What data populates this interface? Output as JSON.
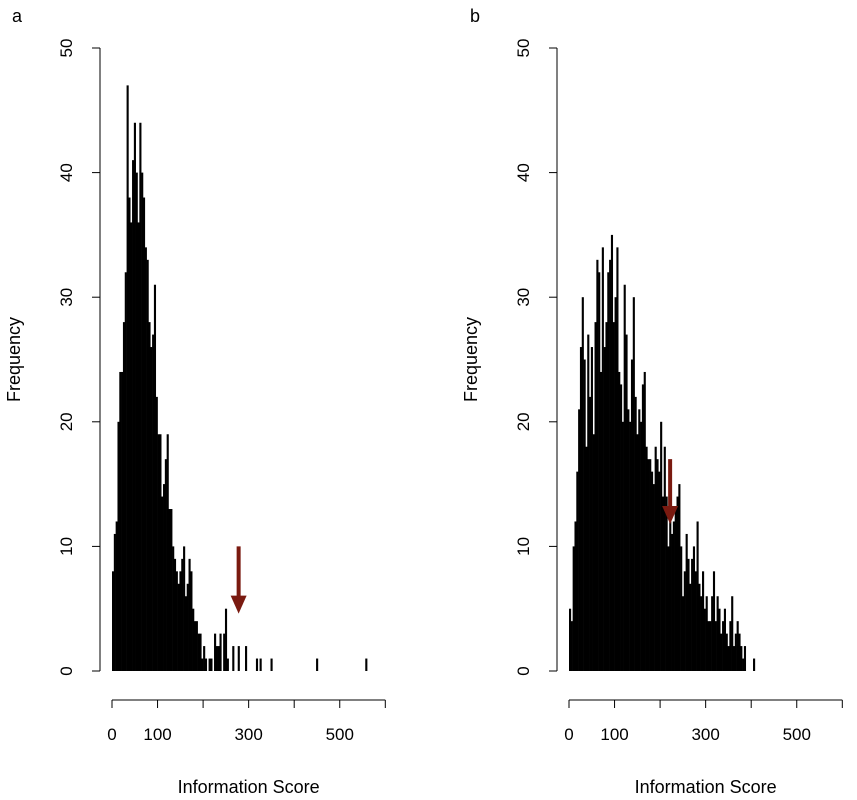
{
  "panels": [
    {
      "label": "a"
    },
    {
      "label": "b"
    }
  ],
  "chart_data": [
    {
      "type": "bar",
      "title": "",
      "panel_label": "a",
      "xlabel": "Information Score",
      "ylabel": "Frequency",
      "xlim": [
        0,
        600
      ],
      "ylim": [
        0,
        50
      ],
      "xticks": [
        0,
        100,
        200,
        300,
        400,
        500,
        600
      ],
      "xtick_labels": [
        "0",
        "100",
        "",
        "300",
        "",
        "500",
        ""
      ],
      "yticks": [
        0,
        10,
        20,
        30,
        40,
        50
      ],
      "ytick_labels": [
        "0",
        "10",
        "20",
        "30",
        "40",
        "50"
      ],
      "bin_width": 4,
      "color": "#000000",
      "arrow": {
        "x": 278,
        "y_from": 10,
        "y_to": 4.6,
        "color": "#7a1a10"
      },
      "series": [
        {
          "x": [
            0,
            4,
            8,
            12,
            16,
            20,
            24,
            28,
            32,
            36,
            40,
            44,
            48,
            52,
            56,
            60,
            64,
            68,
            72,
            76,
            80,
            84,
            88,
            92,
            96,
            100,
            104,
            108,
            112,
            116,
            120,
            124,
            128,
            132,
            136,
            140,
            144,
            148,
            152,
            156,
            160,
            164,
            168,
            172,
            176,
            180,
            184,
            188,
            192,
            196,
            200,
            204,
            208,
            212,
            216,
            220,
            224,
            228,
            232,
            236,
            240,
            244,
            248,
            252,
            256,
            260,
            264,
            268,
            272,
            276,
            280,
            284,
            288,
            292,
            296,
            300,
            304,
            308,
            312,
            316,
            320,
            324,
            328,
            332,
            336,
            340,
            344,
            348,
            352,
            356,
            360,
            364,
            368,
            372,
            376,
            380,
            384,
            388,
            392,
            396,
            400,
            404,
            408,
            412,
            416,
            420,
            424,
            428,
            432,
            436,
            440,
            444,
            448,
            452,
            456,
            460,
            464,
            468,
            472,
            476,
            480,
            484,
            488,
            492,
            496,
            500,
            504,
            508,
            512,
            516,
            520,
            524,
            528,
            532,
            536,
            540,
            544,
            548,
            552,
            556
          ],
          "values": [
            8,
            11,
            12,
            20,
            24,
            24,
            28,
            32,
            47,
            38,
            36,
            41,
            44,
            40,
            36,
            44,
            40,
            38,
            34,
            33,
            28,
            26,
            27,
            31,
            22,
            19,
            19,
            14,
            15,
            17,
            19,
            13,
            13,
            10,
            9,
            8,
            7,
            8,
            9,
            10,
            6,
            7,
            9,
            8,
            5,
            4,
            4,
            3,
            3,
            1,
            2,
            1,
            0,
            1,
            1,
            0,
            3,
            2,
            2,
            3,
            0,
            3,
            5,
            1,
            0,
            0,
            2,
            0,
            0,
            2,
            0,
            0,
            0,
            2,
            0,
            0,
            0,
            0,
            0,
            1,
            0,
            1,
            0,
            0,
            0,
            0,
            0,
            1,
            0,
            0,
            0,
            0,
            0,
            0,
            0,
            0,
            0,
            0,
            0,
            0,
            0,
            0,
            0,
            0,
            0,
            0,
            0,
            0,
            0,
            0,
            0,
            0,
            1,
            0,
            0,
            0,
            0,
            0,
            0,
            0,
            0,
            0,
            0,
            0,
            0,
            0,
            0,
            0,
            0,
            0,
            0,
            0,
            0,
            0,
            0,
            0,
            0,
            0,
            0,
            1
          ]
        }
      ]
    },
    {
      "type": "bar",
      "title": "",
      "panel_label": "b",
      "xlabel": "Information Score",
      "ylabel": "Frequency",
      "xlim": [
        0,
        600
      ],
      "ylim": [
        0,
        50
      ],
      "xticks": [
        0,
        100,
        200,
        300,
        400,
        500,
        600
      ],
      "xtick_labels": [
        "0",
        "100",
        "",
        "300",
        "",
        "500",
        ""
      ],
      "yticks": [
        0,
        10,
        20,
        30,
        40,
        50
      ],
      "ytick_labels": [
        "0",
        "10",
        "20",
        "30",
        "40",
        "50"
      ],
      "bin_width": 4,
      "color": "#000000",
      "arrow": {
        "x": 222,
        "y_from": 17,
        "y_to": 11.8,
        "color": "#7a1a10"
      },
      "series": [
        {
          "x": [
            0,
            4,
            8,
            12,
            16,
            20,
            24,
            28,
            32,
            36,
            40,
            44,
            48,
            52,
            56,
            60,
            64,
            68,
            72,
            76,
            80,
            84,
            88,
            92,
            96,
            100,
            104,
            108,
            112,
            116,
            120,
            124,
            128,
            132,
            136,
            140,
            144,
            148,
            152,
            156,
            160,
            164,
            168,
            172,
            176,
            180,
            184,
            188,
            192,
            196,
            200,
            204,
            208,
            212,
            216,
            220,
            224,
            228,
            232,
            236,
            240,
            244,
            248,
            252,
            256,
            260,
            264,
            268,
            272,
            276,
            280,
            284,
            288,
            292,
            296,
            300,
            304,
            308,
            312,
            316,
            320,
            324,
            328,
            332,
            336,
            340,
            344,
            348,
            352,
            356,
            360,
            364,
            368,
            372,
            376,
            380,
            384,
            388,
            392,
            396,
            400,
            404,
            408,
            412,
            416,
            420,
            424,
            428,
            432,
            436,
            440,
            444,
            448,
            452,
            456,
            460,
            464,
            468,
            472,
            476,
            480,
            484,
            488,
            492,
            496,
            500,
            504,
            508,
            512,
            516,
            520,
            524,
            528,
            532,
            536,
            540,
            544,
            548,
            552,
            556
          ],
          "values": [
            5,
            4,
            10,
            12,
            16,
            21,
            26,
            30,
            25,
            18,
            27,
            22,
            26,
            19,
            28,
            33,
            32,
            24,
            34,
            26,
            28,
            32,
            33,
            35,
            28,
            30,
            34,
            24,
            23,
            20,
            31,
            27,
            21,
            20,
            25,
            30,
            22,
            19,
            21,
            20,
            23,
            24,
            18,
            17,
            17,
            16,
            15,
            18,
            17,
            16,
            20,
            14,
            18,
            14,
            10,
            12,
            11,
            12,
            13,
            14,
            15,
            10,
            6,
            8,
            11,
            9,
            7,
            9,
            10,
            8,
            12,
            7,
            6,
            8,
            5,
            6,
            4,
            4,
            6,
            8,
            4,
            6,
            5,
            3,
            4,
            5,
            3,
            2,
            4,
            6,
            2,
            3,
            4,
            3,
            2,
            1,
            2,
            0,
            0,
            0,
            0,
            1,
            0,
            0,
            0,
            0,
            0,
            0,
            0,
            0,
            0,
            0,
            0,
            0,
            0,
            0,
            0,
            0,
            0,
            0,
            0,
            0,
            0,
            0,
            0,
            0,
            0,
            0,
            0,
            0,
            0,
            0,
            0,
            0,
            0,
            0,
            0,
            0,
            0,
            0
          ]
        }
      ]
    }
  ]
}
